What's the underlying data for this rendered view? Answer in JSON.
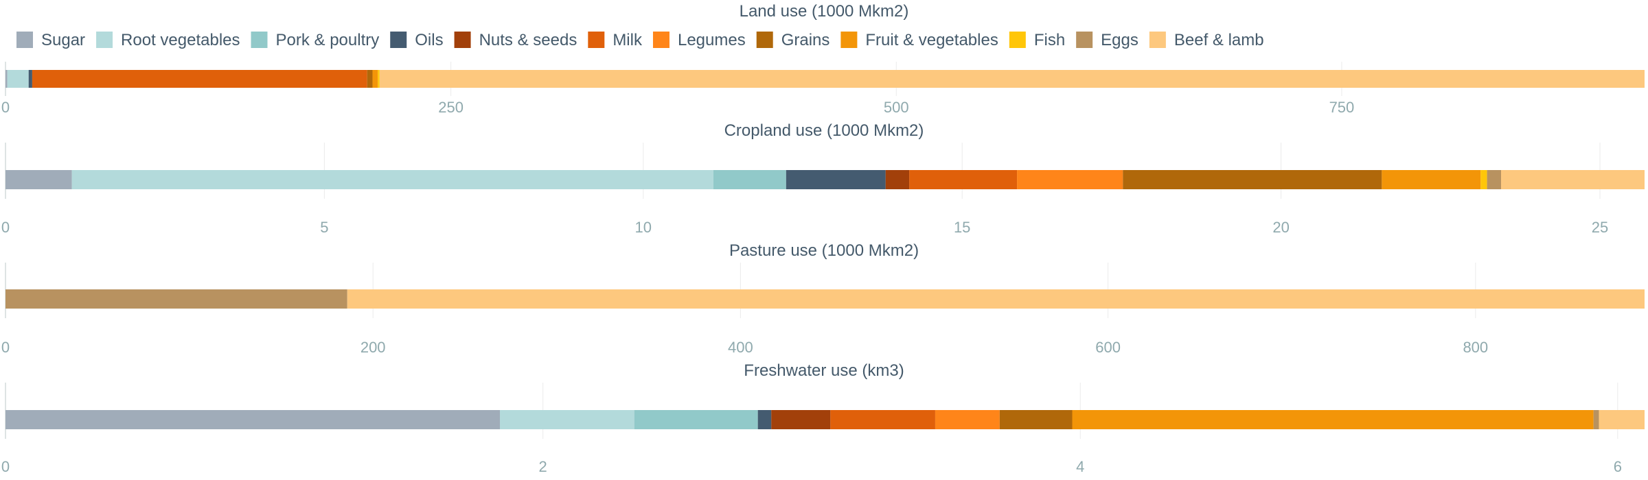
{
  "chart_data": {
    "type": "bar",
    "stacked": true,
    "orientation": "horizontal",
    "legend": {
      "position": "top",
      "items": [
        {
          "name": "Sugar",
          "color": "#a0acb9"
        },
        {
          "name": "Root vegetables",
          "color": "#b3dadb"
        },
        {
          "name": "Pork & poultry",
          "color": "#91c9c9"
        },
        {
          "name": "Oils",
          "color": "#445b70"
        },
        {
          "name": "Nuts & seeds",
          "color": "#a2400a"
        },
        {
          "name": "Milk",
          "color": "#e0600a"
        },
        {
          "name": "Legumes",
          "color": "#ff8519"
        },
        {
          "name": "Grains",
          "color": "#b0680a"
        },
        {
          "name": "Fruit & vegetables",
          "color": "#f39508"
        },
        {
          "name": "Fish",
          "color": "#ffc609"
        },
        {
          "name": "Eggs",
          "color": "#b89260"
        },
        {
          "name": "Beef & lamb",
          "color": "#fdc87e"
        }
      ]
    },
    "panels": [
      {
        "title": "Land use (1000 Mkm2)",
        "xlim": [
          0,
          920
        ],
        "ticks": [
          "0",
          "250",
          "500",
          "750"
        ],
        "tick_values": [
          0,
          250,
          500,
          750
        ],
        "grid": true,
        "values": [
          1,
          12,
          0,
          2,
          0,
          188,
          0,
          3,
          3,
          1,
          0,
          710
        ]
      },
      {
        "title": "Cropland use (1000 Mkm2)",
        "xlim": [
          0,
          25.7
        ],
        "ticks": [
          "0",
          "5",
          "10",
          "15",
          "20",
          "25"
        ],
        "tick_values": [
          0,
          5,
          10,
          15,
          20,
          25
        ],
        "grid": true,
        "values": [
          1.04,
          10.06,
          1.14,
          1.56,
          0.37,
          1.69,
          1.66,
          4.06,
          1.55,
          0.1,
          0.22,
          2.25
        ]
      },
      {
        "title": "Pasture use (1000 Mkm2)",
        "xlim": [
          0,
          892
        ],
        "ticks": [
          "0",
          "200",
          "400",
          "600",
          "800"
        ],
        "tick_values": [
          0,
          200,
          400,
          600,
          800
        ],
        "grid": true,
        "values": [
          0,
          0,
          0,
          0,
          0,
          0,
          0,
          0,
          0,
          0,
          186,
          706
        ]
      },
      {
        "title": "Freshwater use (km3)",
        "xlim": [
          0,
          6.1
        ],
        "ticks": [
          "0",
          "2",
          "4",
          "6"
        ],
        "tick_values": [
          0,
          2,
          4,
          6
        ],
        "grid": true,
        "values": [
          1.84,
          0.5,
          0.46,
          0.05,
          0.22,
          0.39,
          0.24,
          0.27,
          1.94,
          0,
          0.02,
          0.17
        ]
      }
    ]
  }
}
